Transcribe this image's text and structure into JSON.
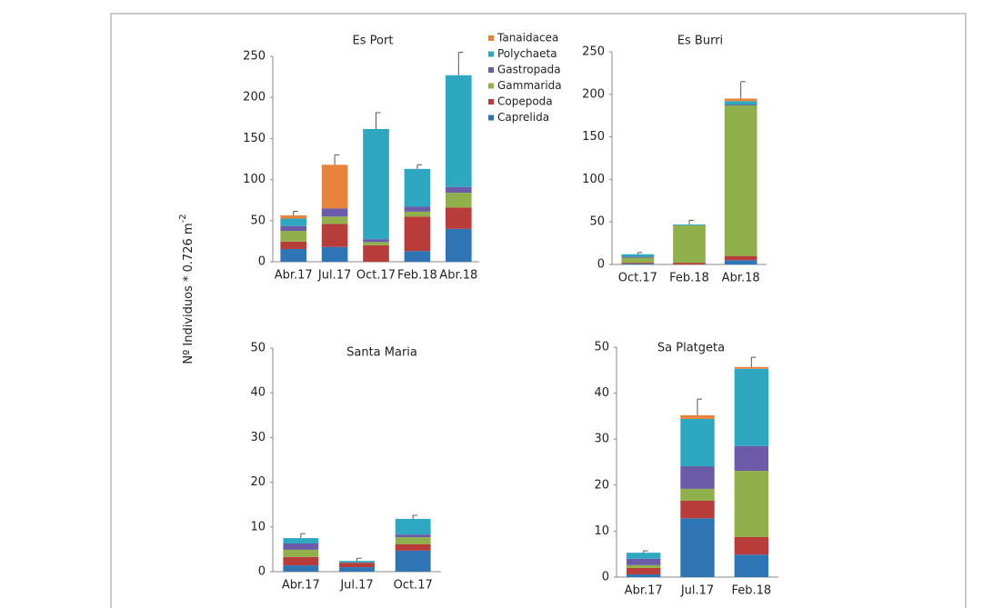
{
  "ylabel": {
    "text": "Nº Individuos * 0.726 m",
    "superscript": "-2"
  },
  "chart_data": [
    {
      "type": "stacked_bar",
      "title": "Es Port",
      "categories": [
        "Abr.17",
        "Jul.17",
        "Oct.17",
        "Feb.18",
        "Abr.18"
      ],
      "series": [
        {
          "name": "Caprelida",
          "color": "#2e75b6",
          "values": [
            15.5,
            18,
            0,
            13,
            40
          ]
        },
        {
          "name": "Copepoda",
          "color": "#b83c3a",
          "values": [
            9,
            28,
            20,
            42,
            26
          ]
        },
        {
          "name": "Gammarida",
          "color": "#8fb04a",
          "values": [
            13,
            9,
            4,
            6,
            18
          ]
        },
        {
          "name": "Gastropada",
          "color": "#6b5ba8",
          "values": [
            6,
            10,
            3.5,
            6,
            7
          ]
        },
        {
          "name": "Polychaeta",
          "color": "#2ea7c1",
          "values": [
            9,
            0,
            134,
            46,
            136
          ]
        },
        {
          "name": "Tanaidacea",
          "color": "#e8833a",
          "values": [
            4,
            53,
            0,
            0,
            0
          ]
        }
      ],
      "errors": [
        5,
        12,
        20,
        5,
        28
      ],
      "ylim": [
        0,
        250
      ],
      "yticks": [
        0,
        50,
        100,
        150,
        200,
        250
      ]
    },
    {
      "type": "stacked_bar",
      "title": "Es Burri",
      "categories": [
        "Oct.17",
        "Feb.18",
        "Abr.18"
      ],
      "series": [
        {
          "color": "#2e75b6",
          "values": [
            1,
            0,
            5
          ]
        },
        {
          "color": "#b83c3a",
          "values": [
            1,
            2,
            5
          ]
        },
        {
          "color": "#8fb04a",
          "values": [
            6,
            44,
            177
          ]
        },
        {
          "color": "#6b5ba8",
          "values": [
            1,
            0,
            1
          ]
        },
        {
          "color": "#2ea7c1",
          "values": [
            3,
            1,
            4
          ]
        },
        {
          "color": "#e8833a",
          "values": [
            0,
            0,
            3
          ]
        }
      ],
      "errors": [
        2,
        5,
        20
      ],
      "ylim": [
        0,
        250
      ],
      "yticks": [
        0,
        50,
        100,
        150,
        200,
        250
      ]
    },
    {
      "type": "stacked_bar",
      "title": "Santa Maria",
      "categories": [
        "Abr.17",
        "Jul.17",
        "Oct.17"
      ],
      "series": [
        {
          "color": "#2e75b6",
          "values": [
            1.4,
            1,
            4.7
          ]
        },
        {
          "color": "#b83c3a",
          "values": [
            1.9,
            1,
            1.4
          ]
        },
        {
          "color": "#8fb04a",
          "values": [
            1.6,
            0,
            1.6
          ]
        },
        {
          "color": "#6b5ba8",
          "values": [
            1.4,
            0,
            0.6
          ]
        },
        {
          "color": "#2ea7c1",
          "values": [
            1.2,
            0.4,
            3.5
          ]
        },
        {
          "color": "#e8833a",
          "values": [
            0,
            0,
            0
          ]
        }
      ],
      "errors": [
        1,
        0.6,
        0.8
      ],
      "ylim": [
        0,
        50
      ],
      "yticks": [
        0,
        10,
        20,
        30,
        40,
        50
      ]
    },
    {
      "type": "stacked_bar",
      "title": "Sa Platgeta",
      "categories": [
        "Abr.17",
        "Jul.17",
        "Feb.18"
      ],
      "series": [
        {
          "color": "#2e75b6",
          "values": [
            0.6,
            12.8,
            4.9
          ]
        },
        {
          "color": "#b83c3a",
          "values": [
            1.4,
            3.8,
            3.8
          ]
        },
        {
          "color": "#8fb04a",
          "values": [
            0.6,
            2.6,
            14.4
          ]
        },
        {
          "color": "#6b5ba8",
          "values": [
            1.4,
            4.9,
            5.4
          ]
        },
        {
          "color": "#2ea7c1",
          "values": [
            1.3,
            10.3,
            16.8
          ]
        },
        {
          "color": "#e8833a",
          "values": [
            0,
            0.8,
            0.4
          ]
        }
      ],
      "errors": [
        0.4,
        3.5,
        2.1
      ],
      "ylim": [
        0,
        50
      ],
      "yticks": [
        0,
        10,
        20,
        30,
        40,
        50
      ]
    }
  ]
}
